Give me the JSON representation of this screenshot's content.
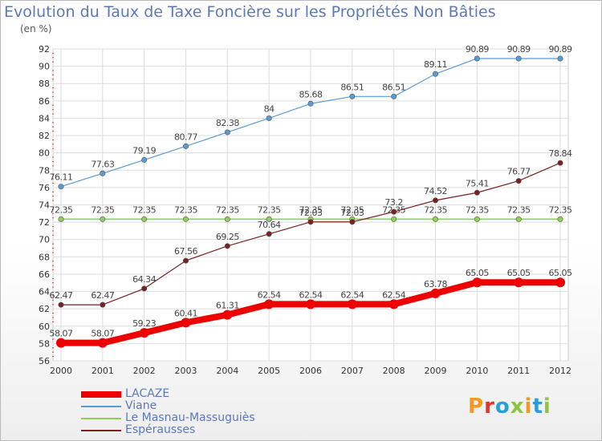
{
  "header": {
    "title": "Evolution du Taux de Taxe Foncière sur les Propriétés Non Bâties",
    "unit": "(en %)"
  },
  "logo": {
    "text": "Proxiti",
    "colors": [
      "#f39a1e",
      "#e6332a",
      "#2a9fd6",
      "#8cc63f",
      "#f39a1e",
      "#2a9fd6",
      "#8cc63f"
    ]
  },
  "chart_data": {
    "type": "line",
    "x": [
      "2000",
      "2001",
      "2002",
      "2003",
      "2004",
      "2005",
      "2006",
      "2007",
      "2008",
      "2009",
      "2010",
      "2011",
      "2012"
    ],
    "ylim": [
      56,
      92
    ],
    "yticks": [
      56,
      58,
      60,
      62,
      64,
      66,
      68,
      70,
      72,
      74,
      76,
      78,
      80,
      82,
      84,
      86,
      88,
      90,
      92
    ],
    "grid": true,
    "legend_placement": "bottom-left",
    "series": [
      {
        "name": "LACAZE",
        "color": "#ee0000",
        "labels": [
          "58.07",
          "58.07",
          "59.23",
          "60.41",
          "61.31",
          "62.54",
          "62.54",
          "62.54",
          "62.54",
          "63.78",
          "65.05",
          "65.05",
          "65.05"
        ],
        "values": [
          58.07,
          58.07,
          59.23,
          60.41,
          61.31,
          62.54,
          62.54,
          62.54,
          62.54,
          63.78,
          65.05,
          65.05,
          65.05
        ]
      },
      {
        "name": "Viane",
        "color": "#5b9bd5",
        "labels": [
          "76.11",
          "77.63",
          "79.19",
          "80.77",
          "82.38",
          "84",
          "85.68",
          "86.51",
          "86.51",
          "89.11",
          "90.89",
          "90.89",
          "90.89"
        ],
        "values": [
          76.11,
          77.63,
          79.19,
          80.77,
          82.38,
          84,
          85.68,
          86.51,
          86.51,
          89.11,
          90.89,
          90.89,
          90.89
        ]
      },
      {
        "name": "Le Masnau-Massuguiès",
        "color": "#8fd14f",
        "labels": [
          "72.35",
          "72.35",
          "72.35",
          "72.35",
          "72.35",
          "72.35",
          "72.35",
          "72.35",
          "72.35",
          "72.35",
          "72.35",
          "72.35",
          "72.35"
        ],
        "values": [
          72.35,
          72.35,
          72.35,
          72.35,
          72.35,
          72.35,
          72.35,
          72.35,
          72.35,
          72.35,
          72.35,
          72.35,
          72.35
        ]
      },
      {
        "name": "Espérausses",
        "color": "#7b2020",
        "labels": [
          "62.47",
          "62.47",
          "64.34",
          "67.56",
          "69.25",
          "70.64",
          "72.03",
          "72.03",
          "73.2",
          "74.52",
          "75.41",
          "76.77",
          "78.84"
        ],
        "values": [
          62.47,
          62.47,
          64.34,
          67.56,
          69.25,
          70.64,
          72.03,
          72.03,
          73.2,
          74.52,
          75.41,
          76.77,
          78.84
        ]
      }
    ]
  }
}
